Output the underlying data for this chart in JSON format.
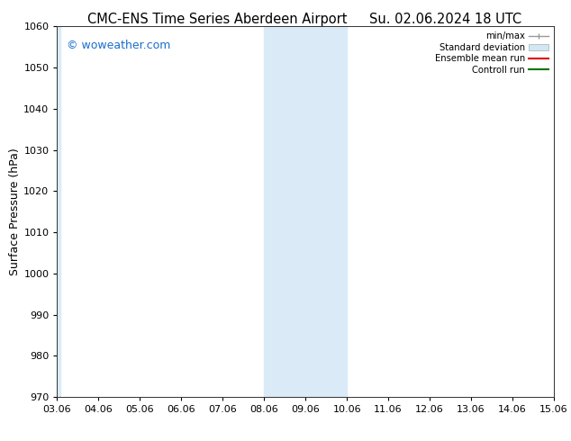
{
  "title_left": "CMC-ENS Time Series Aberdeen Airport",
  "title_right": "Su. 02.06.2024 18 UTC",
  "ylabel": "Surface Pressure (hPa)",
  "xlim": [
    0,
    12
  ],
  "ylim": [
    970,
    1060
  ],
  "yticks": [
    970,
    980,
    990,
    1000,
    1010,
    1020,
    1030,
    1040,
    1050,
    1060
  ],
  "xtick_labels": [
    "03.06",
    "04.06",
    "05.06",
    "06.06",
    "07.06",
    "08.06",
    "09.06",
    "10.06",
    "11.06",
    "12.06",
    "13.06",
    "14.06",
    "15.06"
  ],
  "xtick_positions": [
    0,
    1,
    2,
    3,
    4,
    5,
    6,
    7,
    8,
    9,
    10,
    11,
    12
  ],
  "shaded_color": "#daeaf7",
  "background_color": "#ffffff",
  "watermark_text": "© woweather.com",
  "watermark_color": "#1a6ecc",
  "title_fontsize": 10.5,
  "axis_fontsize": 9,
  "tick_fontsize": 8
}
